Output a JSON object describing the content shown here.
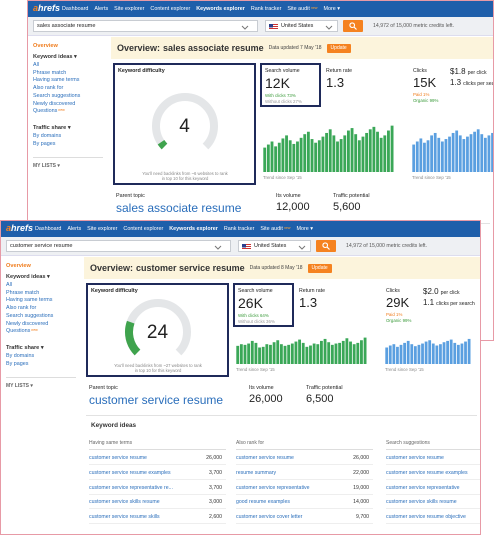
{
  "screens": [
    {
      "logo": "ahrefs",
      "nav": [
        {
          "label": "Dashboard"
        },
        {
          "label": "Alerts"
        },
        {
          "label": "Site explorer"
        },
        {
          "label": "Content explorer"
        },
        {
          "label": "Keywords explorer"
        },
        {
          "label": "Rank tracker"
        },
        {
          "label": "Site audit",
          "badge": "new"
        },
        {
          "label": "More ▾"
        }
      ],
      "search": {
        "query": "sales associate resume",
        "country": "United States",
        "credits": "14,972 of 15,000 metric credits left."
      },
      "sidebar": {
        "overview": "Overview",
        "keyword_ideas": "Keyword ideas ▾",
        "keyword_items": [
          {
            "label": "All"
          },
          {
            "label": "Phrase match"
          },
          {
            "label": "Having same terms"
          },
          {
            "label": "Also rank for"
          },
          {
            "label": "Search suggestions"
          },
          {
            "label": "Newly discovered"
          },
          {
            "label": "Questions",
            "badge": "new"
          }
        ],
        "traffic_share": "Traffic share ▾",
        "traffic_items": [
          "By domains",
          "By pages"
        ],
        "my_lists": "MY LISTS ▾"
      },
      "overview": {
        "label": "Overview:",
        "keyword": "sales associate resume",
        "updated": "Data updated 7 May '18",
        "update_button": "Update"
      },
      "difficulty": {
        "label": "Keyword difficulty",
        "value": 4,
        "note": "You'll need backlinks from ~6 websites to rank in top 10 for this keyword"
      },
      "volume": {
        "label": "Search volume",
        "value": "12K",
        "with_clicks": "With clicks 73%",
        "without_clicks": "Without clicks 27%",
        "trend_label": "Trend since Sep '15",
        "trend": [
          40,
          45,
          50,
          42,
          48,
          55,
          60,
          52,
          46,
          50,
          56,
          62,
          66,
          54,
          48,
          52,
          58,
          64,
          70,
          60,
          50,
          54,
          60,
          68,
          72,
          62,
          52,
          58,
          64,
          70,
          74,
          66,
          56,
          60,
          68,
          76
        ]
      },
      "return_rate": {
        "label": "Return rate",
        "value": 1.3
      },
      "clicks": {
        "label": "Clicks",
        "value": "15K",
        "paid": "Paid 1%",
        "organic": "Organic 99%",
        "cpc": "$1.8",
        "cpc_label": "per click",
        "per_search": 1.3,
        "per_search_label": "clicks per search",
        "trend_label": "Trend since Sep '15",
        "trend": [
          45,
          50,
          55,
          48,
          52,
          60,
          64,
          56,
          50,
          54,
          58,
          64,
          68,
          60,
          54,
          58,
          62,
          66,
          70,
          62,
          56,
          60,
          64,
          70
        ]
      },
      "parent": {
        "label": "Parent topic",
        "keyword": "sales associate resume",
        "volume_label": "Its volume",
        "volume": "12,000",
        "traffic_label": "Traffic potential",
        "traffic": "5,600"
      },
      "ideas": {
        "title": "Keyword ideas",
        "columns": []
      }
    },
    {
      "logo": "ahrefs",
      "nav": [
        {
          "label": "Dashboard"
        },
        {
          "label": "Alerts"
        },
        {
          "label": "Site explorer"
        },
        {
          "label": "Content explorer"
        },
        {
          "label": "Keywords explorer"
        },
        {
          "label": "Rank tracker"
        },
        {
          "label": "Site audit",
          "badge": "new"
        },
        {
          "label": "More ▾"
        }
      ],
      "search": {
        "query": "customer service resume",
        "country": "United States",
        "credits": "14,972 of 15,000 metric credits left."
      },
      "sidebar": {
        "overview": "Overview",
        "keyword_ideas": "Keyword ideas ▾",
        "keyword_items": [
          {
            "label": "All"
          },
          {
            "label": "Phrase match"
          },
          {
            "label": "Having same terms"
          },
          {
            "label": "Also rank for"
          },
          {
            "label": "Search suggestions"
          },
          {
            "label": "Newly discovered"
          },
          {
            "label": "Questions",
            "badge": "new"
          }
        ],
        "traffic_share": "Traffic share ▾",
        "traffic_items": [
          "By domains",
          "By pages"
        ],
        "my_lists": "MY LISTS ▾"
      },
      "overview": {
        "label": "Overview:",
        "keyword": "customer service resume",
        "updated": "Data updated 8 May '18",
        "update_button": "Update"
      },
      "difficulty": {
        "label": "Keyword difficulty",
        "value": 24,
        "note": "You'll need backlinks from ~27 websites to rank in top 10 for this keyword"
      },
      "volume": {
        "label": "Search volume",
        "value": "26K",
        "with_clicks": "With clicks 64%",
        "without_clicks": "Without clicks 36%",
        "trend_label": "Trend since Sep '15",
        "trend": [
          55,
          60,
          58,
          62,
          70,
          64,
          50,
          52,
          60,
          58,
          66,
          72,
          60,
          55,
          58,
          62,
          68,
          74,
          64,
          52,
          56,
          62,
          60,
          70,
          76,
          66,
          58,
          62,
          64,
          70,
          78,
          68,
          60,
          64,
          72,
          80
        ]
      },
      "return_rate": {
        "label": "Return rate",
        "value": 1.3
      },
      "clicks": {
        "label": "Clicks",
        "value": "29K",
        "paid": "Paid 1%",
        "organic": "Organic 99%",
        "cpc": "$2.0",
        "cpc_label": "per click",
        "per_search": 1.1,
        "per_search_label": "clicks per search",
        "trend_label": "Trend since Sep '15",
        "trend": [
          50,
          56,
          60,
          52,
          58,
          64,
          70,
          60,
          54,
          58,
          62,
          68,
          72,
          62,
          56,
          60,
          66,
          70,
          74,
          64,
          58,
          62,
          68,
          76
        ]
      },
      "parent": {
        "label": "Parent topic",
        "keyword": "customer service resume",
        "volume_label": "Its volume",
        "volume": "26,000",
        "traffic_label": "Traffic potential",
        "traffic": "6,500"
      },
      "ideas": {
        "title": "Keyword ideas",
        "columns": [
          {
            "title": "Having same terms",
            "rows": [
              {
                "keyword": "customer service resume",
                "volume": "26,000"
              },
              {
                "keyword": "customer service resume examples",
                "volume": "3,700"
              },
              {
                "keyword": "customer service representative re...",
                "volume": "3,700"
              },
              {
                "keyword": "customer service skills resume",
                "volume": "3,000"
              },
              {
                "keyword": "customer service resume skills",
                "volume": "2,600"
              }
            ]
          },
          {
            "title": "Also rank for",
            "rows": [
              {
                "keyword": "customer service resume",
                "volume": "26,000"
              },
              {
                "keyword": "resume summary",
                "volume": "22,000"
              },
              {
                "keyword": "customer service representative",
                "volume": "19,000"
              },
              {
                "keyword": "good resume examples",
                "volume": "14,000"
              },
              {
                "keyword": "customer service cover letter",
                "volume": "9,700"
              }
            ]
          },
          {
            "title": "Search suggestions",
            "rows": [
              {
                "keyword": "customer service resume"
              },
              {
                "keyword": "customer service resume examples"
              },
              {
                "keyword": "customer service representative"
              },
              {
                "keyword": "customer service skills resume"
              },
              {
                "keyword": "customer service resume objective"
              }
            ]
          }
        ]
      }
    }
  ]
}
